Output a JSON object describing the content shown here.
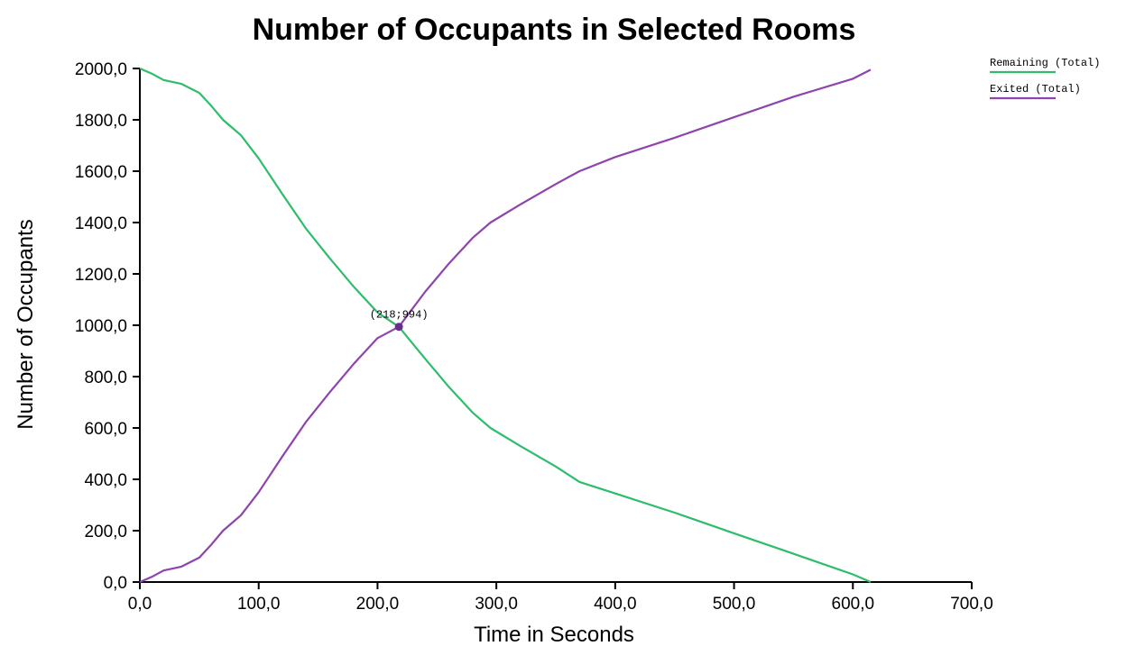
{
  "chart_data": {
    "type": "line",
    "title": "Number of Occupants in Selected Rooms",
    "xlabel": "Time in Seconds",
    "ylabel": "Number of Occupants",
    "xlim": [
      0,
      700
    ],
    "ylim": [
      0,
      2000
    ],
    "x_ticks": [
      0,
      100,
      200,
      300,
      400,
      500,
      600,
      700
    ],
    "x_tick_labels": [
      "0,0",
      "100,0",
      "200,0",
      "300,0",
      "400,0",
      "500,0",
      "600,0",
      "700,0"
    ],
    "y_ticks": [
      0,
      200,
      400,
      600,
      800,
      1000,
      1200,
      1400,
      1600,
      1800,
      2000
    ],
    "y_tick_labels": [
      "0,0",
      "200,0",
      "400,0",
      "600,0",
      "800,0",
      "1000,0",
      "1200,0",
      "1400,0",
      "1600,0",
      "1800,0",
      "2000,0"
    ],
    "grid": false,
    "legend_position": "top-right",
    "series": [
      {
        "name": "Remaining (Total)",
        "color": "#2ebd6b",
        "x": [
          0,
          10,
          20,
          35,
          50,
          60,
          70,
          85,
          100,
          120,
          140,
          160,
          180,
          200,
          218,
          240,
          260,
          280,
          295,
          320,
          350,
          370,
          400,
          450,
          500,
          550,
          600,
          615
        ],
        "y": [
          2000,
          1980,
          1955,
          1940,
          1905,
          1855,
          1800,
          1740,
          1650,
          1510,
          1375,
          1260,
          1150,
          1050,
          994,
          870,
          760,
          660,
          600,
          530,
          450,
          390,
          345,
          270,
          190,
          110,
          30,
          0
        ]
      },
      {
        "name": "Exited (Total)",
        "color": "#8e44ad",
        "x": [
          0,
          10,
          20,
          35,
          50,
          60,
          70,
          85,
          100,
          120,
          140,
          160,
          180,
          200,
          218,
          240,
          260,
          280,
          295,
          320,
          350,
          370,
          400,
          450,
          500,
          550,
          600,
          615
        ],
        "y": [
          0,
          20,
          45,
          60,
          95,
          145,
          200,
          260,
          350,
          490,
          625,
          740,
          850,
          950,
          994,
          1130,
          1240,
          1340,
          1400,
          1470,
          1550,
          1600,
          1655,
          1730,
          1810,
          1890,
          1960,
          1995
        ]
      }
    ],
    "annotations": [
      {
        "text": "(218;994)",
        "x": 218,
        "y": 994
      }
    ]
  }
}
